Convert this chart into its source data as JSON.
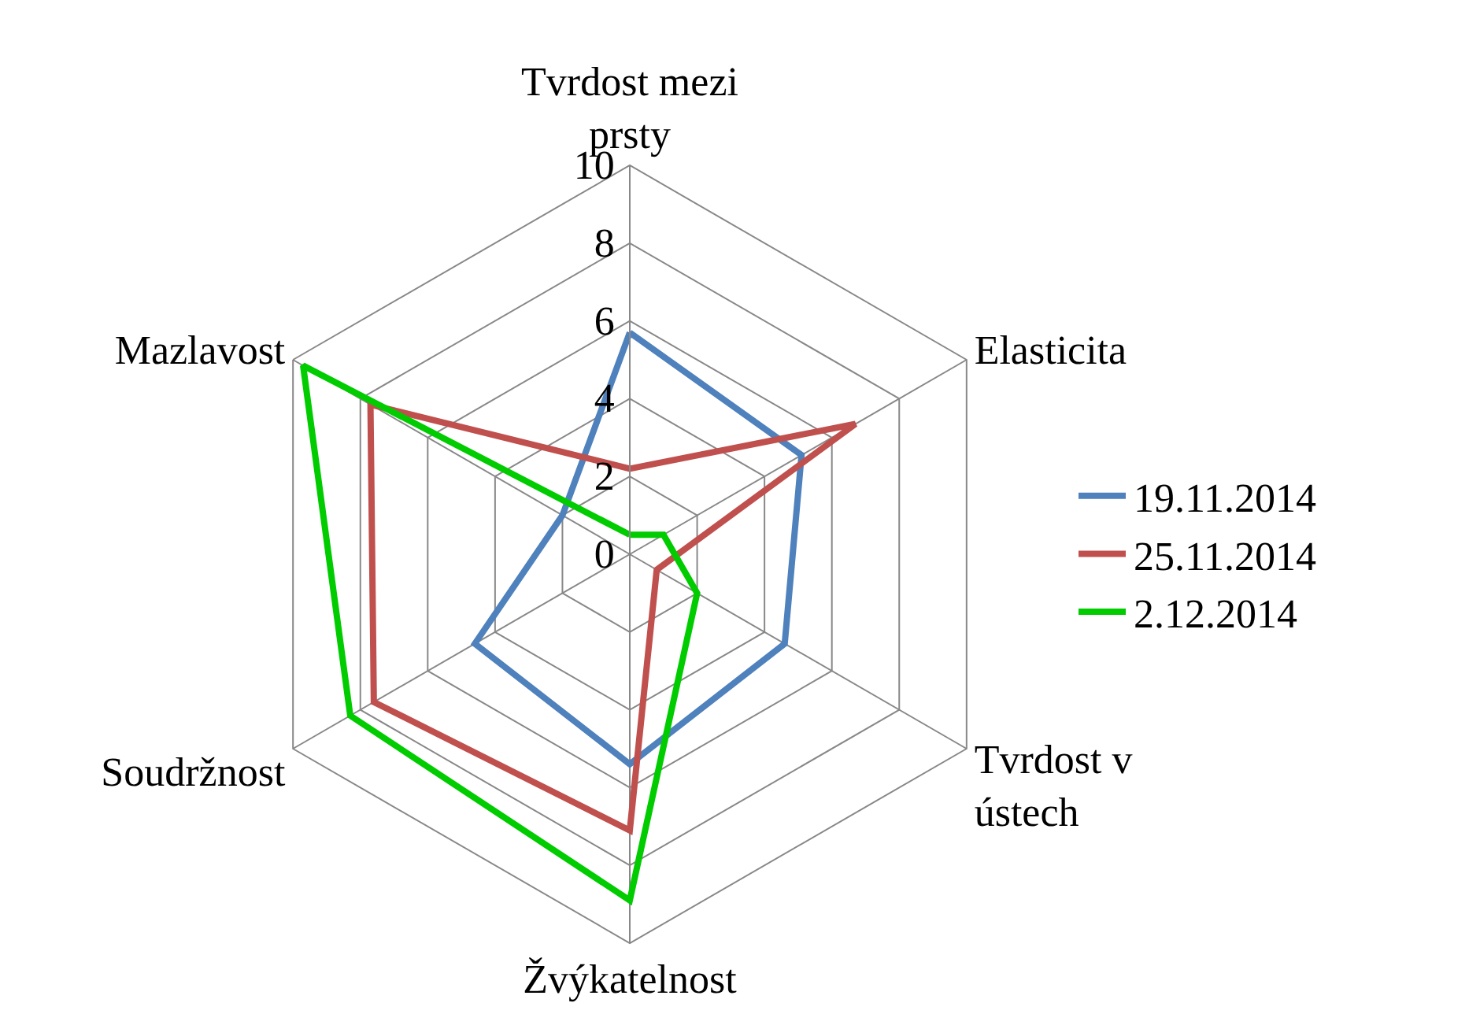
{
  "chart_data": {
    "type": "radar",
    "categories": [
      "Tvrdost mezi prsty",
      "Elasticita",
      "Tvrdost v ústech",
      "Žvýkatelnost",
      "Soudržnost",
      "Mazlavost"
    ],
    "series": [
      {
        "name": "19.11.2014",
        "color": "#4f81bd",
        "values": [
          5.7,
          5.1,
          4.6,
          5.4,
          4.6,
          2.0
        ]
      },
      {
        "name": "25.11.2014",
        "color": "#c0504d",
        "values": [
          2.2,
          6.7,
          0.8,
          7.1,
          7.6,
          7.7
        ]
      },
      {
        "name": "2.12.2014",
        "color": "#00cc00",
        "values": [
          0.5,
          1.0,
          2.0,
          8.9,
          8.3,
          9.7
        ]
      }
    ],
    "ylim": [
      0,
      10
    ],
    "yticks": [
      0,
      2,
      4,
      6,
      8,
      10
    ],
    "grid": true,
    "legend": "right",
    "marker": "none",
    "line_style": "solid"
  }
}
